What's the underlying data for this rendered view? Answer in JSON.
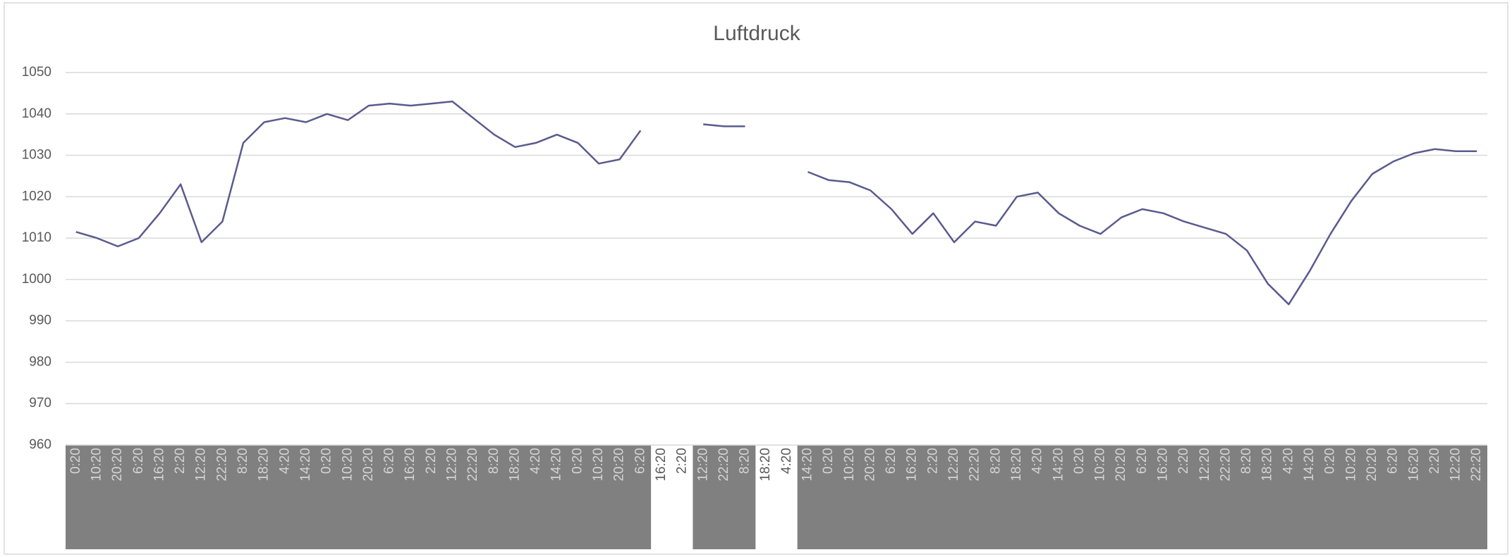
{
  "chart_data": {
    "type": "line",
    "title": "Luftdruck",
    "categories": [
      "0:20",
      "10:20",
      "20:20",
      "6:20",
      "16:20",
      "2:20",
      "12:20",
      "22:20",
      "8:20",
      "18:20",
      "4:20",
      "14:20",
      "0:20",
      "10:20",
      "20:20",
      "6:20",
      "16:20",
      "2:20",
      "12:20",
      "22:20",
      "8:20",
      "18:20",
      "4:20",
      "14:20",
      "0:20",
      "10:20",
      "20:20",
      "6:20",
      "16:20",
      "2:20",
      "12:20",
      "22:20",
      "8:20",
      "18:20",
      "4:20",
      "14:20",
      "0:20",
      "10:20",
      "20:20",
      "6:20",
      "16:20",
      "2:20",
      "12:20",
      "22:20",
      "8:20",
      "18:20",
      "4:20",
      "14:20",
      "0:20",
      "10:20",
      "20:20",
      "6:20",
      "16:20",
      "2:20",
      "12:20",
      "22:20",
      "8:20",
      "18:20",
      "4:20",
      "14:20",
      "0:20",
      "10:20",
      "20:20",
      "6:20",
      "16:20",
      "2:20",
      "12:20",
      "22:20"
    ],
    "series": [
      {
        "name": "Luftdruck",
        "color": "#5a5a8e",
        "values": [
          1011.5,
          1010,
          1008,
          1010,
          1016,
          1023,
          1009,
          1014,
          1033,
          1038,
          1039,
          1038,
          1040,
          1038.5,
          1042,
          1042.5,
          1042,
          1042.5,
          1043,
          1039,
          1035,
          1032,
          1033,
          1035,
          1033,
          1028,
          1029,
          1036,
          null,
          null,
          1037.5,
          1037,
          1037,
          null,
          null,
          1026,
          1024,
          1023.5,
          1021.5,
          1017,
          1011,
          1016,
          1009,
          1014,
          1013,
          1020,
          1021,
          1016,
          1013,
          1011,
          1015,
          1017,
          1016,
          1014,
          1012.5,
          1011,
          1007,
          999,
          994,
          1002,
          1011,
          1019,
          1025.5,
          1028.5,
          1030.5,
          1031.5,
          1031,
          1031
        ]
      }
    ],
    "ylim": [
      960,
      1050
    ],
    "yticks": [
      960,
      970,
      980,
      990,
      1000,
      1010,
      1020,
      1030,
      1040,
      1050
    ],
    "grid": true
  }
}
